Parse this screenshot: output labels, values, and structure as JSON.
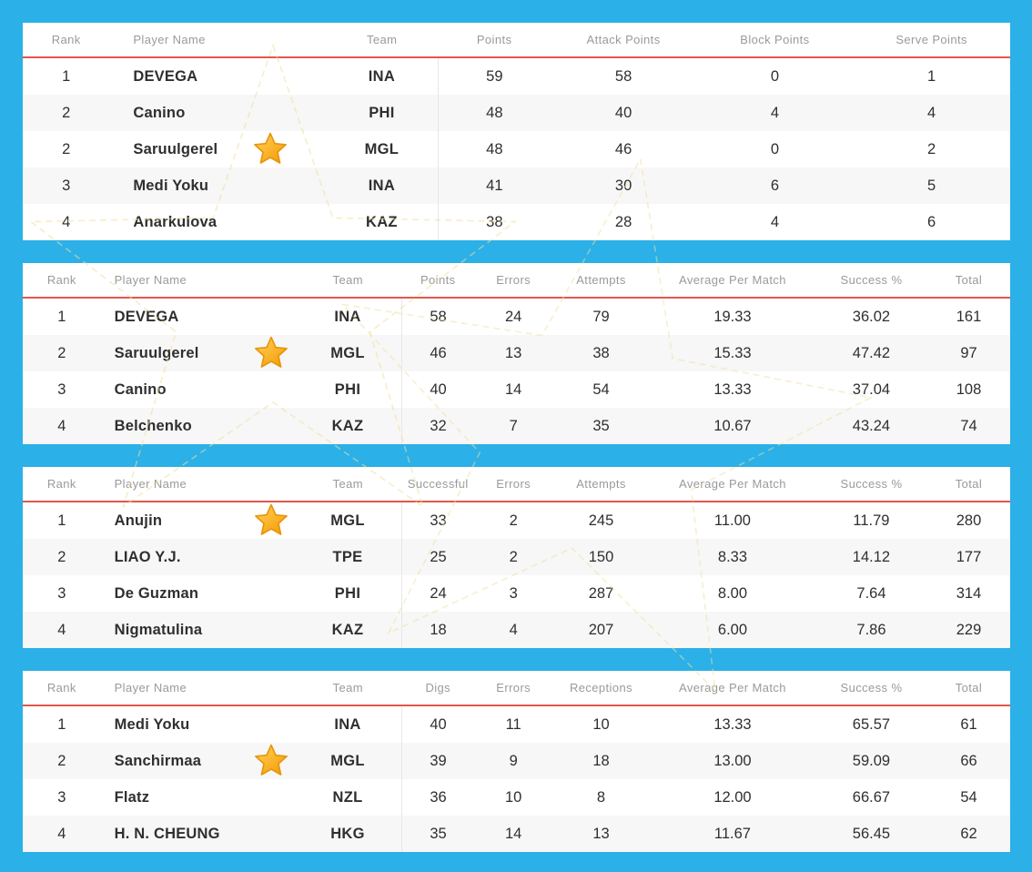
{
  "colors": {
    "page_background": "#2bb0e8",
    "table_background": "#ffffff",
    "row_alternate": "#f7f7f7",
    "header_text": "#9a9a9a",
    "cell_text": "#2f2f2f",
    "header_rule_red": "#e2574b",
    "column_divider": "#e7e7e7",
    "star_gold_light": "#ffd45e",
    "star_gold_dark": "#f29c07",
    "star_outline": "#e8950c",
    "watermark_yellow": "#f0df9b"
  },
  "icons": {
    "highlight_star": "star-icon"
  },
  "tables": [
    {
      "columns": [
        "Rank",
        "Player Name",
        "Team",
        "Points",
        "Attack Points",
        "Block Points",
        "Serve Points"
      ],
      "rows": [
        {
          "rank": "1",
          "player": "DEVEGA",
          "star": false,
          "team": "INA",
          "values": [
            "59",
            "58",
            "0",
            "1"
          ]
        },
        {
          "rank": "2",
          "player": "Canino",
          "star": false,
          "team": "PHI",
          "values": [
            "48",
            "40",
            "4",
            "4"
          ]
        },
        {
          "rank": "2",
          "player": "Saruulgerel",
          "star": true,
          "team": "MGL",
          "values": [
            "48",
            "46",
            "0",
            "2"
          ]
        },
        {
          "rank": "3",
          "player": "Medi Yoku",
          "star": false,
          "team": "INA",
          "values": [
            "41",
            "30",
            "6",
            "5"
          ]
        },
        {
          "rank": "4",
          "player": "Anarkulova",
          "star": false,
          "team": "KAZ",
          "values": [
            "38",
            "28",
            "4",
            "6"
          ]
        }
      ]
    },
    {
      "columns": [
        "Rank",
        "Player Name",
        "Team",
        "Points",
        "Errors",
        "Attempts",
        "Average Per Match",
        "Success %",
        "Total"
      ],
      "rows": [
        {
          "rank": "1",
          "player": "DEVEGA",
          "star": false,
          "team": "INA",
          "values": [
            "58",
            "24",
            "79",
            "19.33",
            "36.02",
            "161"
          ]
        },
        {
          "rank": "2",
          "player": "Saruulgerel",
          "star": true,
          "team": "MGL",
          "values": [
            "46",
            "13",
            "38",
            "15.33",
            "47.42",
            "97"
          ]
        },
        {
          "rank": "3",
          "player": "Canino",
          "star": false,
          "team": "PHI",
          "values": [
            "40",
            "14",
            "54",
            "13.33",
            "37.04",
            "108"
          ]
        },
        {
          "rank": "4",
          "player": "Belchenko",
          "star": false,
          "team": "KAZ",
          "values": [
            "32",
            "7",
            "35",
            "10.67",
            "43.24",
            "74"
          ]
        }
      ]
    },
    {
      "columns": [
        "Rank",
        "Player Name",
        "Team",
        "Successful",
        "Errors",
        "Attempts",
        "Average Per Match",
        "Success %",
        "Total"
      ],
      "rows": [
        {
          "rank": "1",
          "player": "Anujin",
          "star": true,
          "team": "MGL",
          "values": [
            "33",
            "2",
            "245",
            "11.00",
            "11.79",
            "280"
          ]
        },
        {
          "rank": "2",
          "player": "LIAO Y.J.",
          "star": false,
          "team": "TPE",
          "values": [
            "25",
            "2",
            "150",
            "8.33",
            "14.12",
            "177"
          ]
        },
        {
          "rank": "3",
          "player": "De Guzman",
          "star": false,
          "team": "PHI",
          "values": [
            "24",
            "3",
            "287",
            "8.00",
            "7.64",
            "314"
          ]
        },
        {
          "rank": "4",
          "player": "Nigmatulina",
          "star": false,
          "team": "KAZ",
          "values": [
            "18",
            "4",
            "207",
            "6.00",
            "7.86",
            "229"
          ]
        }
      ]
    },
    {
      "columns": [
        "Rank",
        "Player Name",
        "Team",
        "Digs",
        "Errors",
        "Receptions",
        "Average Per Match",
        "Success %",
        "Total"
      ],
      "rows": [
        {
          "rank": "1",
          "player": "Medi Yoku",
          "star": false,
          "team": "INA",
          "values": [
            "40",
            "11",
            "10",
            "13.33",
            "65.57",
            "61"
          ]
        },
        {
          "rank": "2",
          "player": "Sanchirmaa",
          "star": true,
          "team": "MGL",
          "values": [
            "39",
            "9",
            "18",
            "13.00",
            "59.09",
            "66"
          ]
        },
        {
          "rank": "3",
          "player": "Flatz",
          "star": false,
          "team": "NZL",
          "values": [
            "36",
            "10",
            "8",
            "12.00",
            "66.67",
            "54"
          ]
        },
        {
          "rank": "4",
          "player": "H. N. CHEUNG",
          "star": false,
          "team": "HKG",
          "values": [
            "35",
            "14",
            "13",
            "11.67",
            "56.45",
            "62"
          ]
        }
      ]
    }
  ]
}
